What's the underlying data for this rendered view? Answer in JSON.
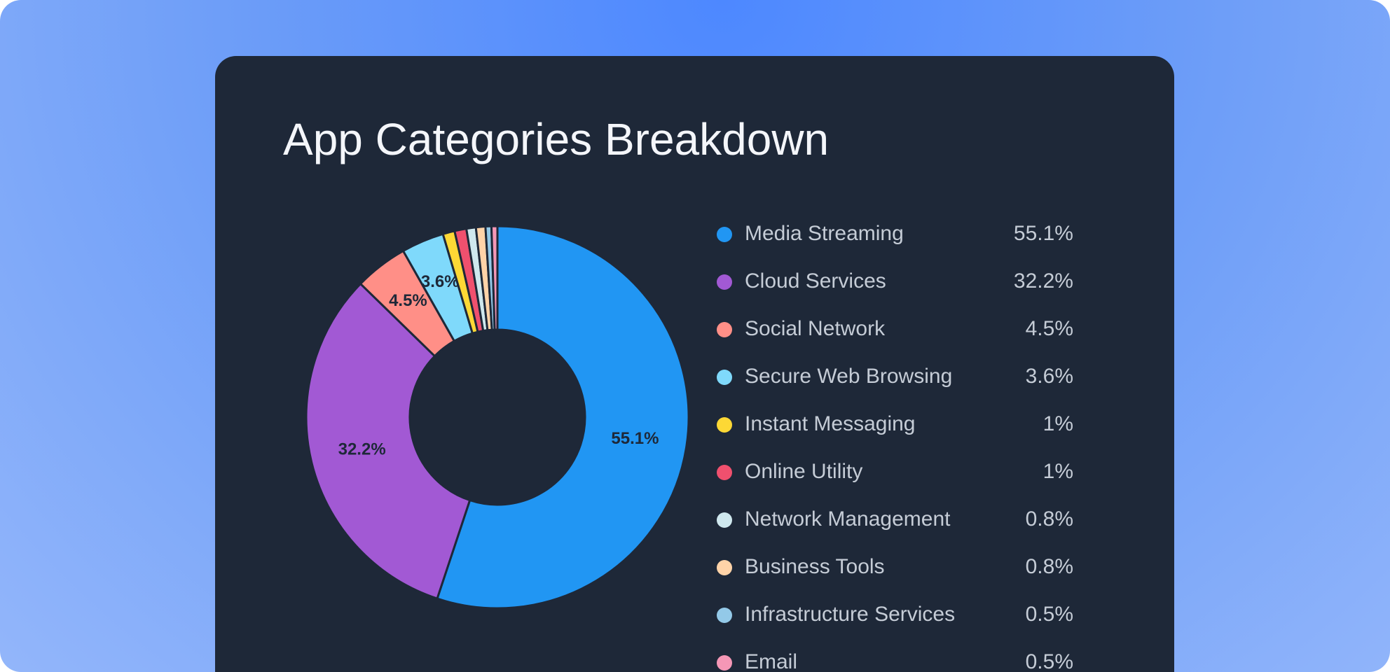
{
  "chart_data": {
    "type": "donut",
    "title": "App Categories Breakdown",
    "categories": [
      "Media Streaming",
      "Cloud Services",
      "Social Network",
      "Secure Web Browsing",
      "Instant Messaging",
      "Online Utility",
      "Network Management",
      "Business Tools",
      "Infrastructure Services",
      "Email"
    ],
    "values": [
      55.1,
      32.2,
      4.5,
      3.6,
      1,
      1,
      0.8,
      0.8,
      0.5,
      0.5
    ],
    "value_labels": [
      "55.1%",
      "32.2%",
      "4.5%",
      "3.6%",
      "1%",
      "1%",
      "0.8%",
      "0.8%",
      "0.5%",
      "0.5%"
    ],
    "colors": [
      "#2196f3",
      "#a259d4",
      "#ff8f87",
      "#7fd9fb",
      "#fdd835",
      "#f0506e",
      "#cfe8ee",
      "#ffd3a8",
      "#93c9e8",
      "#f597b6"
    ]
  }
}
